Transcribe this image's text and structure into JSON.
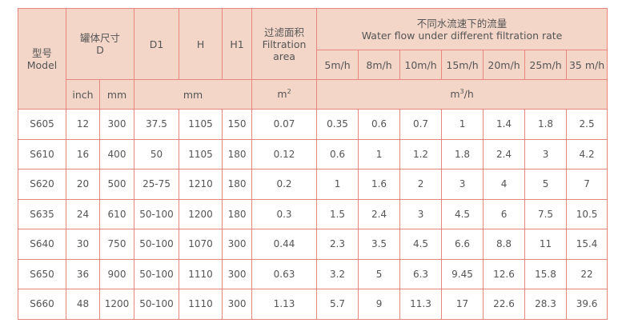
{
  "header": {
    "model_cn": "型号",
    "model_en": "Model",
    "tank_cn": "罐体尺寸",
    "tank_en": "D",
    "d1": "D1",
    "h": "H",
    "h1": "H1",
    "area_cn": "过滤面积",
    "area_en1": "Filtration",
    "area_en2": "area",
    "flow_cn": "不同水流速下的流量",
    "flow_en": "Water flow under different filtration rate",
    "inch": "inch",
    "mm": "mm",
    "mm2": "mm",
    "m2_base": "m",
    "m2_exp": "2",
    "m3h_base": "m",
    "m3h_exp": "3",
    "m3h_tail": "/h",
    "rates": [
      "5m/h",
      "8m/h",
      "10m/h",
      "15m/h",
      "20m/h",
      "25m/h",
      "35 m/h"
    ]
  },
  "rows": [
    [
      "S605",
      "12",
      "300",
      "37.5",
      "1105",
      "150",
      "0.07",
      "0.35",
      "0.6",
      "0.7",
      "1",
      "1.4",
      "1.8",
      "2.5"
    ],
    [
      "S610",
      "16",
      "400",
      "50",
      "1105",
      "180",
      "0.12",
      "0.6",
      "1",
      "1.2",
      "1.8",
      "2.4",
      "3",
      "4.2"
    ],
    [
      "S620",
      "20",
      "500",
      "25-75",
      "1210",
      "180",
      "0.2",
      "1",
      "1.6",
      "2",
      "3",
      "4",
      "5",
      "7"
    ],
    [
      "S635",
      "24",
      "610",
      "50-100",
      "1200",
      "180",
      "0.3",
      "1.5",
      "2.4",
      "3",
      "4.5",
      "6",
      "7.5",
      "10.5"
    ],
    [
      "S640",
      "30",
      "750",
      "50-100",
      "1070",
      "300",
      "0.44",
      "2.3",
      "3.5",
      "4.5",
      "6.6",
      "8.8",
      "11",
      "15.4"
    ],
    [
      "S650",
      "36",
      "900",
      "50-100",
      "1110",
      "300",
      "0.63",
      "3.2",
      "5",
      "6.3",
      "9.45",
      "12.6",
      "15.8",
      "22"
    ],
    [
      "S660",
      "48",
      "1200",
      "50-100",
      "1110",
      "300",
      "1.13",
      "5.7",
      "9",
      "11.3",
      "17",
      "22.6",
      "28.3",
      "39.6"
    ]
  ],
  "colors": {
    "header_bg": "#f3d6c8",
    "border": "#e8857c",
    "border_strong": "#d9493d",
    "text": "#555555"
  }
}
